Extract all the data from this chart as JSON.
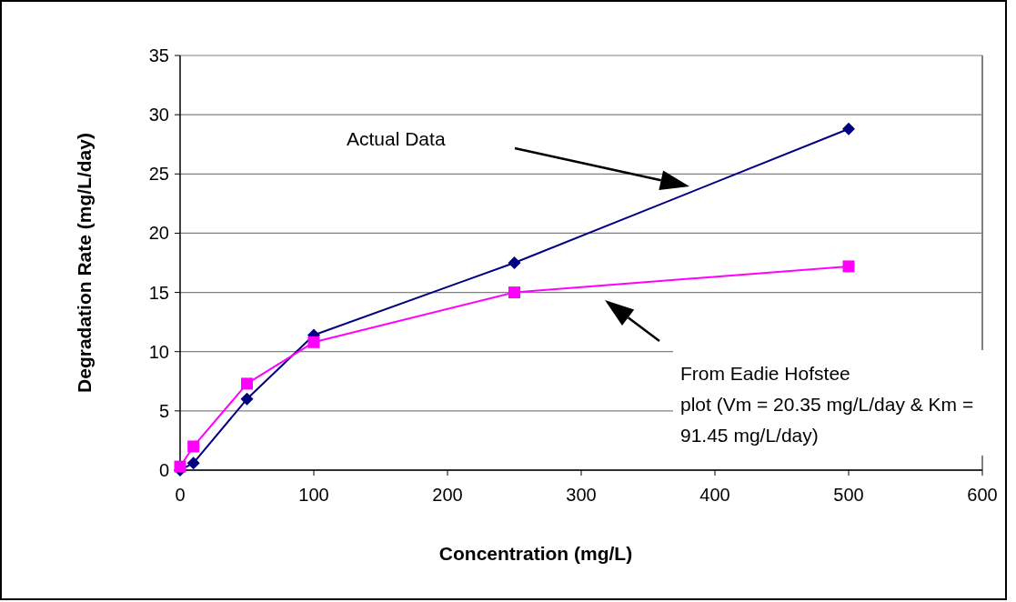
{
  "chart_data": {
    "type": "line",
    "xlabel": "Concentration (mg/L)",
    "ylabel": "Degradation Rate (mg/L/day)",
    "x": [
      0,
      10,
      50,
      100,
      250,
      500
    ],
    "series": [
      {
        "color": "#000080",
        "marker": "diamond",
        "values": [
          0,
          0.6,
          6.0,
          11.4,
          17.5,
          28.8
        ]
      },
      {
        "color": "#ff00ff",
        "marker": "square",
        "values": [
          0.3,
          2.0,
          7.3,
          10.8,
          15.0,
          17.2
        ]
      }
    ],
    "xlim": [
      0,
      600
    ],
    "xticks": [
      0,
      100,
      200,
      300,
      400,
      500,
      600
    ],
    "ylim": [
      0,
      35
    ],
    "yticks": [
      0,
      5,
      10,
      15,
      20,
      25,
      30,
      35
    ],
    "grid": "y",
    "line_style": "solid",
    "annotations": [
      "Actual Data",
      "From Eadie Hofstee plot (Vm = 20.35 mg/L/day & Km = 91.45 mg/L/day)"
    ]
  }
}
